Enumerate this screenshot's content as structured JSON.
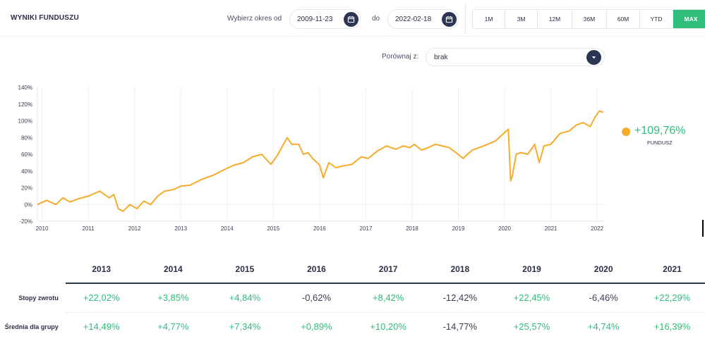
{
  "header": {
    "title": "WYNIKI FUNDUSZU",
    "period_label": "Wybierz okres od",
    "date_from": "2009-11-23",
    "to_label": "do",
    "date_to": "2022-02-18",
    "ranges": [
      {
        "label": "1M",
        "active": false
      },
      {
        "label": "3M",
        "active": false
      },
      {
        "label": "12M",
        "active": false
      },
      {
        "label": "36M",
        "active": false
      },
      {
        "label": "60M",
        "active": false
      },
      {
        "label": "YTD",
        "active": false
      },
      {
        "label": "MAX",
        "active": true
      }
    ]
  },
  "compare": {
    "label": "Porównaj z:",
    "value": "brak"
  },
  "legend": {
    "value": "+109,76%",
    "label": "FUNDUSZ",
    "color": "#f7ab2a"
  },
  "chart_data": {
    "type": "line",
    "series": [
      {
        "name": "FUNDUSZ",
        "color": "#f7ab2a",
        "x": [
          2009.9,
          2010.1,
          2010.3,
          2010.45,
          2010.6,
          2010.8,
          2011.0,
          2011.25,
          2011.45,
          2011.55,
          2011.65,
          2011.75,
          2011.9,
          2012.05,
          2012.2,
          2012.35,
          2012.5,
          2012.65,
          2012.85,
          2013.0,
          2013.2,
          2013.45,
          2013.7,
          2013.95,
          2014.15,
          2014.35,
          2014.55,
          2014.75,
          2014.95,
          2015.1,
          2015.2,
          2015.3,
          2015.4,
          2015.55,
          2015.65,
          2015.75,
          2015.85,
          2016.0,
          2016.08,
          2016.2,
          2016.35,
          2016.5,
          2016.7,
          2016.9,
          2017.05,
          2017.25,
          2017.45,
          2017.65,
          2017.8,
          2017.95,
          2018.05,
          2018.2,
          2018.35,
          2018.5,
          2018.65,
          2018.8,
          2018.95,
          2019.1,
          2019.3,
          2019.55,
          2019.8,
          2020.0,
          2020.08,
          2020.13,
          2020.17,
          2020.2,
          2020.25,
          2020.35,
          2020.5,
          2020.65,
          2020.75,
          2020.85,
          2021.0,
          2021.2,
          2021.4,
          2021.55,
          2021.7,
          2021.85,
          2021.95,
          2022.05,
          2022.13
        ],
        "y": [
          0,
          5,
          0,
          8,
          3,
          7,
          10,
          16,
          8,
          12,
          -5,
          -8,
          0,
          -5,
          4,
          0,
          10,
          16,
          18,
          22,
          23,
          30,
          35,
          42,
          47,
          50,
          57,
          60,
          48,
          60,
          70,
          80,
          72,
          72,
          60,
          62,
          55,
          47,
          32,
          50,
          44,
          46,
          48,
          57,
          55,
          64,
          70,
          66,
          70,
          68,
          72,
          65,
          68,
          72,
          70,
          68,
          62,
          55,
          65,
          70,
          76,
          86,
          90,
          28,
          35,
          45,
          60,
          62,
          60,
          72,
          50,
          70,
          72,
          85,
          88,
          95,
          98,
          93,
          104,
          112,
          110
        ]
      }
    ],
    "xticks": [
      "2010",
      "2011",
      "2012",
      "2013",
      "2014",
      "2015",
      "2016",
      "2017",
      "2018",
      "2019",
      "2020",
      "2021",
      "2022"
    ],
    "yticks": [
      "-20%",
      "0%",
      "20%",
      "40%",
      "60%",
      "80%",
      "100%",
      "120%",
      "140%"
    ],
    "ylim": [
      -20,
      140
    ],
    "xlim": [
      2009.9,
      2022.15
    ],
    "grid": "vertical"
  },
  "returns_table": {
    "years": [
      "2013",
      "2014",
      "2015",
      "2016",
      "2017",
      "2018",
      "2019",
      "2020",
      "2021"
    ],
    "rows": [
      {
        "label": "Stopy zwrotu",
        "values": [
          "+22,02%",
          "+3,85%",
          "+4,84%",
          "-0,62%",
          "+8,42%",
          "-12,42%",
          "+22,45%",
          "-6,46%",
          "+22,29%"
        ]
      },
      {
        "label": "Średnia dla grupy",
        "values": [
          "+14,49%",
          "+4,77%",
          "+7,34%",
          "+0,89%",
          "+10,20%",
          "-14,77%",
          "+25,57%",
          "+4,74%",
          "+16,39%"
        ]
      }
    ]
  }
}
